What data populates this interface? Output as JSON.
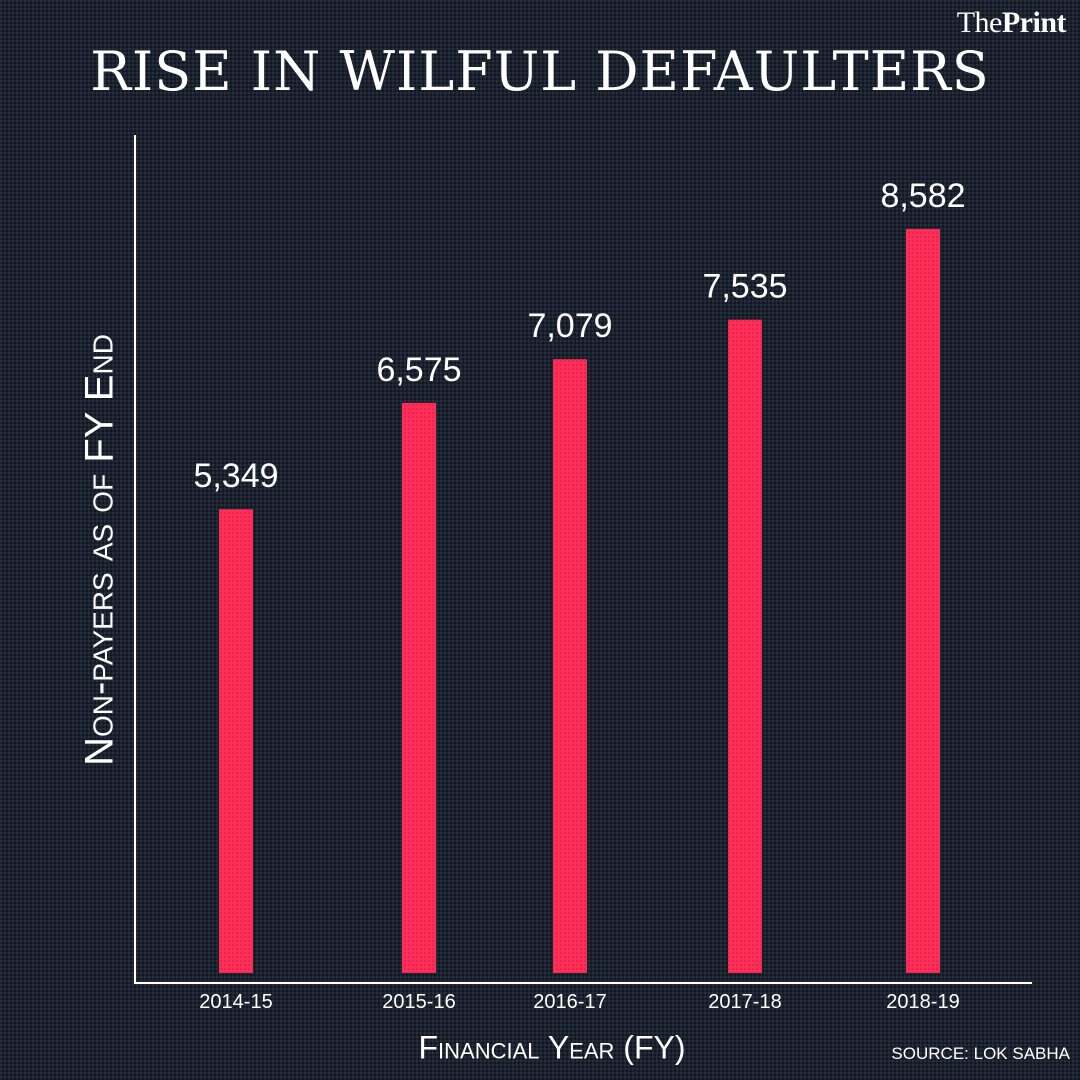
{
  "brand": {
    "part1": "The",
    "part2": "Print"
  },
  "chart_data": {
    "type": "bar",
    "title": "RISE IN WILFUL DEFAULTERS",
    "xlabel": "Financial Year  (FY)",
    "ylabel": "Non-payers as of FY End",
    "categories": [
      "2014-15",
      "2015-16",
      "2016-17",
      "2017-18",
      "2018-19"
    ],
    "values": [
      5349,
      6575,
      7079,
      7535,
      8582
    ],
    "value_labels": [
      "5,349",
      "6,575",
      "7,079",
      "7,535",
      "8,582"
    ],
    "ylim": [
      0,
      8800
    ],
    "grid": false,
    "legend": "none",
    "bar_color": "#ff2d58"
  },
  "source": {
    "label": "SOURCE:",
    "value": "LOK SABHA"
  }
}
